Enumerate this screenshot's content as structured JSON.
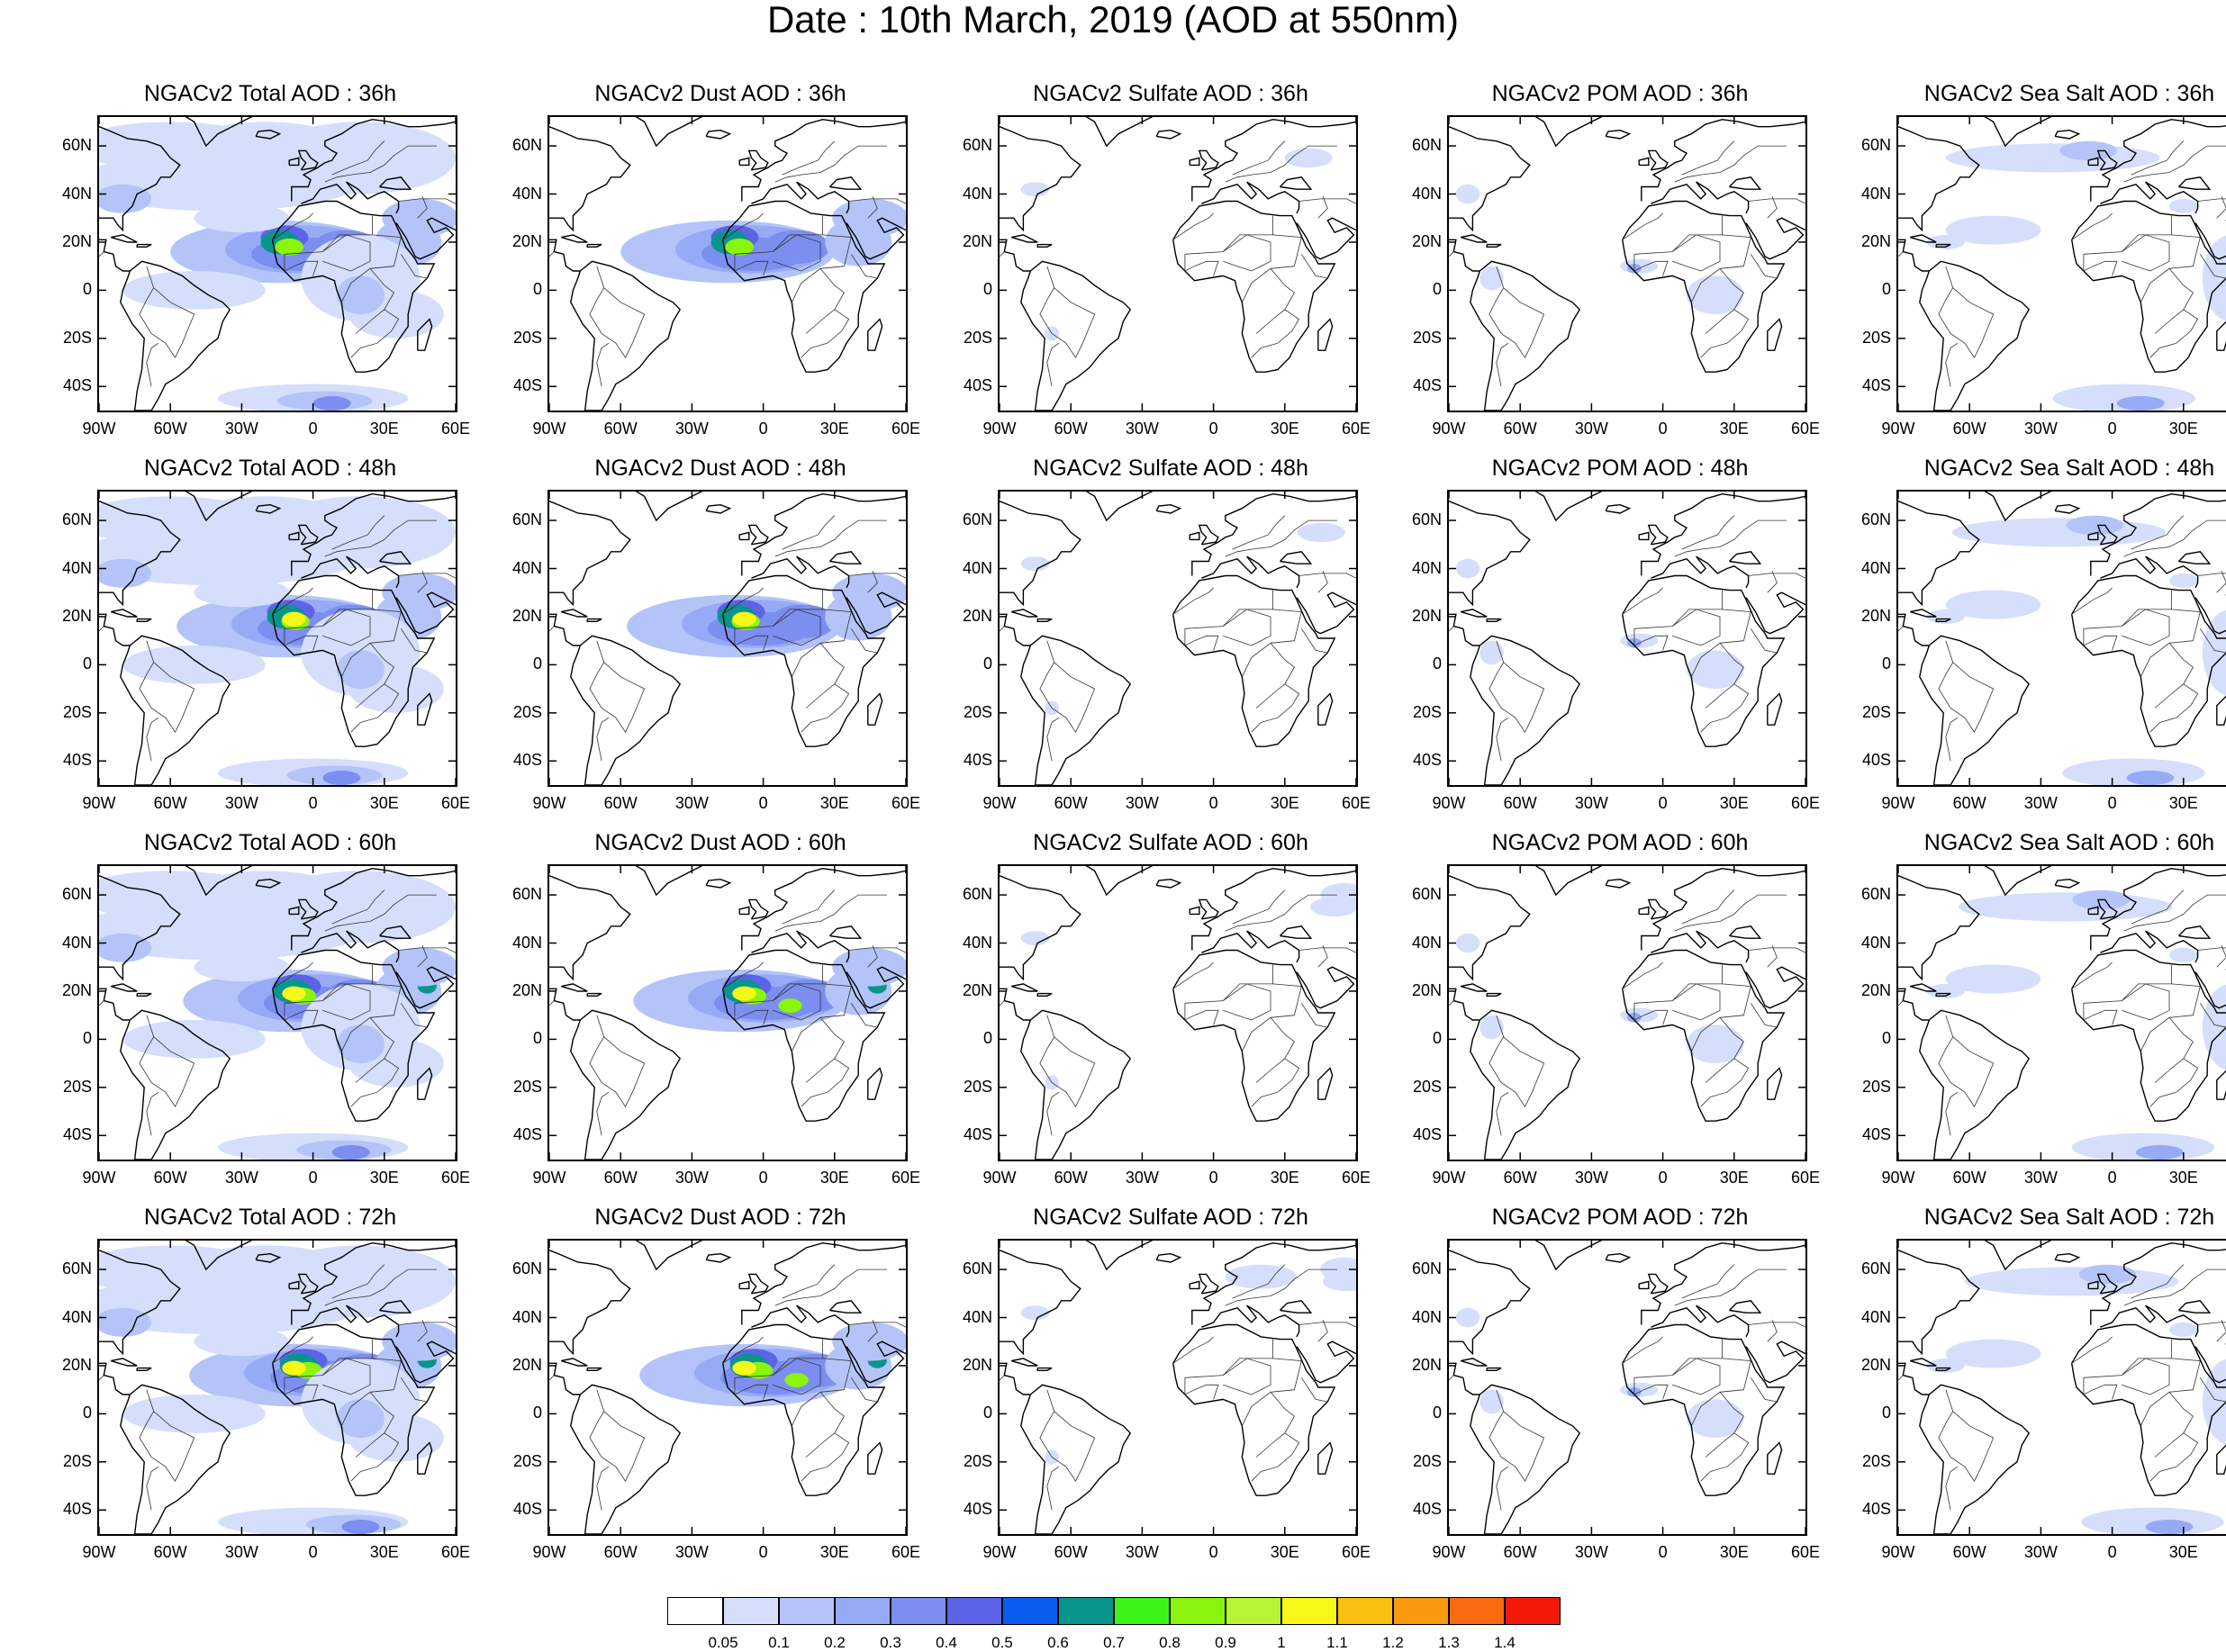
{
  "title": "Date : 10th March, 2019 (AOD at 550nm)",
  "lat_ticks": [
    "60N",
    "40N",
    "20N",
    "0",
    "20S",
    "40S"
  ],
  "lon_ticks": [
    "90W",
    "60W",
    "30W",
    "0",
    "30E",
    "60E"
  ],
  "panels": [
    {
      "title": "NGACv2 Total AOD : 36h",
      "species": "total",
      "hour": 36
    },
    {
      "title": "NGACv2 Dust AOD : 36h",
      "species": "dust",
      "hour": 36
    },
    {
      "title": "NGACv2 Sulfate AOD : 36h",
      "species": "sulfate",
      "hour": 36
    },
    {
      "title": "NGACv2 POM AOD : 36h",
      "species": "pom",
      "hour": 36
    },
    {
      "title": "NGACv2 Sea Salt AOD : 36h",
      "species": "seasalt",
      "hour": 36
    },
    {
      "title": "NGACv2 Total AOD : 48h",
      "species": "total",
      "hour": 48
    },
    {
      "title": "NGACv2 Dust AOD : 48h",
      "species": "dust",
      "hour": 48
    },
    {
      "title": "NGACv2 Sulfate AOD : 48h",
      "species": "sulfate",
      "hour": 48
    },
    {
      "title": "NGACv2 POM AOD : 48h",
      "species": "pom",
      "hour": 48
    },
    {
      "title": "NGACv2 Sea Salt AOD : 48h",
      "species": "seasalt",
      "hour": 48
    },
    {
      "title": "NGACv2 Total AOD : 60h",
      "species": "total",
      "hour": 60
    },
    {
      "title": "NGACv2 Dust AOD : 60h",
      "species": "dust",
      "hour": 60
    },
    {
      "title": "NGACv2 Sulfate AOD : 60h",
      "species": "sulfate",
      "hour": 60
    },
    {
      "title": "NGACv2 POM AOD : 60h",
      "species": "pom",
      "hour": 60
    },
    {
      "title": "NGACv2 Sea Salt AOD : 60h",
      "species": "seasalt",
      "hour": 60
    },
    {
      "title": "NGACv2 Total AOD : 72h",
      "species": "total",
      "hour": 72
    },
    {
      "title": "NGACv2 Dust AOD : 72h",
      "species": "dust",
      "hour": 72
    },
    {
      "title": "NGACv2 Sulfate AOD : 72h",
      "species": "sulfate",
      "hour": 72
    },
    {
      "title": "NGACv2 POM AOD : 72h",
      "species": "pom",
      "hour": 72
    },
    {
      "title": "NGACv2 Sea Salt  AOD : 72h",
      "species": "seasalt",
      "hour": 72
    }
  ],
  "colorbar": {
    "labels": [
      "0.05",
      "0.1",
      "0.2",
      "0.3",
      "0.4",
      "0.5",
      "0.6",
      "0.7",
      "0.8",
      "0.9",
      "1",
      "1.1",
      "1.2",
      "1.3",
      "1.4"
    ],
    "colors": [
      "#ffffff",
      "#d5defa",
      "#b4c4f8",
      "#96aaf6",
      "#7c8ef0",
      "#5c63e6",
      "#0a5cf0",
      "#08958c",
      "#3df41a",
      "#8af40c",
      "#b8f434",
      "#f8f818",
      "#f8c010",
      "#f89a10",
      "#f86a10",
      "#f41a0a"
    ]
  }
}
